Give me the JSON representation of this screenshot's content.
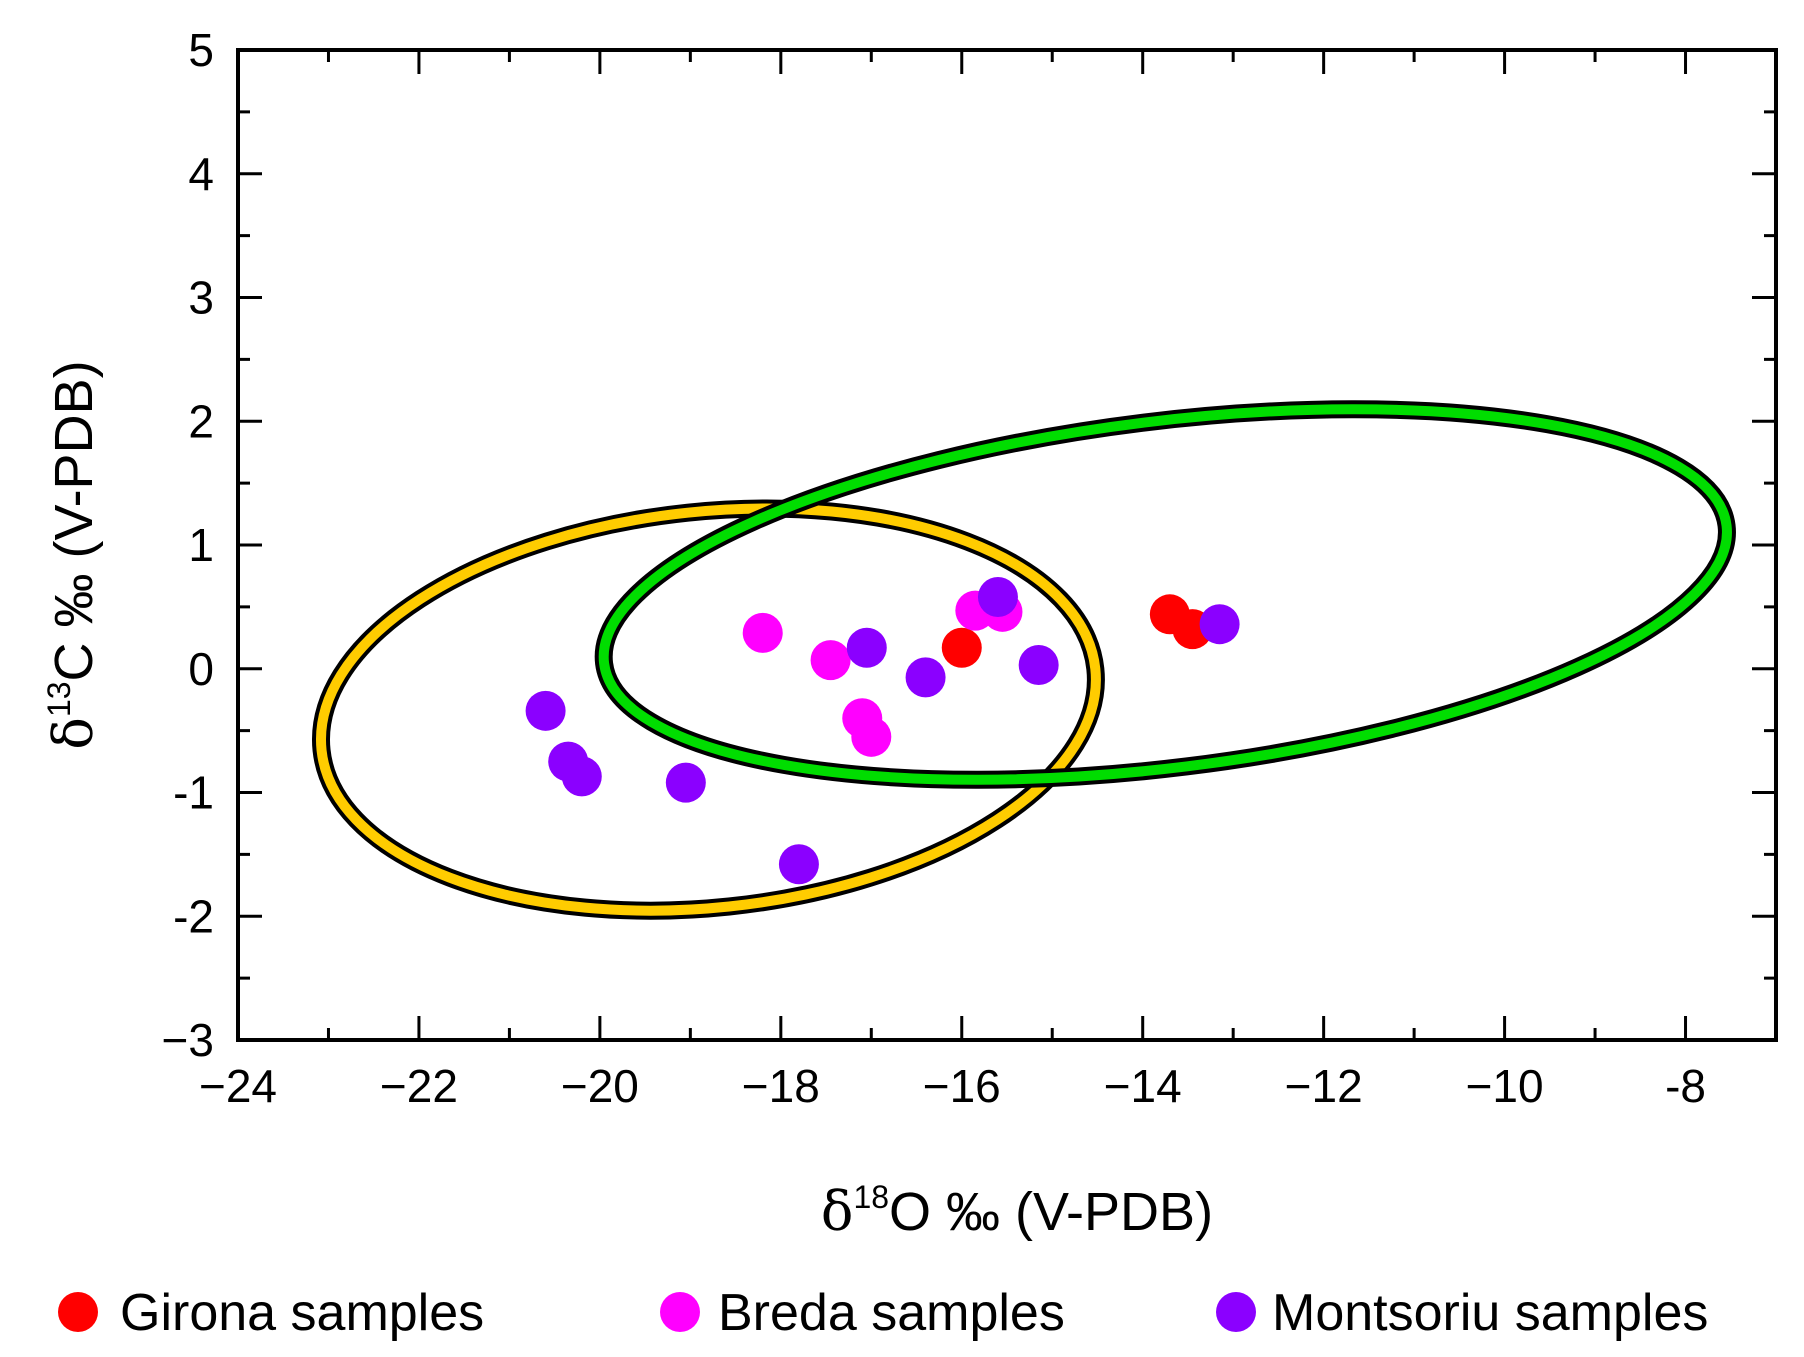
{
  "chart_data": {
    "type": "scatter",
    "title": "",
    "xlabel": {
      "prefix": "δ",
      "sup": "18",
      "suffix": "O ‰ (V-PDB)"
    },
    "ylabel": {
      "prefix": "δ",
      "sup": "13",
      "suffix": "C ‰ (V-PDB)"
    },
    "xlim": [
      -24,
      -7
    ],
    "ylim": [
      -3,
      5
    ],
    "grid": false,
    "xticks": [
      -24,
      -22,
      -20,
      -18,
      -16,
      -14,
      -12,
      -10,
      -8
    ],
    "xtick_labels": [
      "−24",
      "−22",
      "−20",
      "−18",
      "−16",
      "−14",
      "−12",
      "−10",
      "-8"
    ],
    "yticks": [
      5,
      4,
      3,
      2,
      1,
      0,
      -1,
      -2,
      -3
    ],
    "ytick_labels": [
      "5",
      "4",
      "3",
      "2",
      "1",
      "0",
      "-1",
      "-2",
      "−3"
    ],
    "legend_position": "bottom",
    "series": [
      {
        "name": "Girona samples",
        "color": "#ff0000",
        "points": [
          {
            "x": -13.7,
            "y": 0.44
          },
          {
            "x": -13.45,
            "y": 0.32
          },
          {
            "x": -16.0,
            "y": 0.17
          }
        ]
      },
      {
        "name": "Breda samples",
        "color": "#ff00ff",
        "points": [
          {
            "x": -18.2,
            "y": 0.29
          },
          {
            "x": -17.45,
            "y": 0.07
          },
          {
            "x": -17.1,
            "y": -0.4
          },
          {
            "x": -17.0,
            "y": -0.55
          },
          {
            "x": -15.85,
            "y": 0.47
          },
          {
            "x": -15.55,
            "y": 0.46
          }
        ]
      },
      {
        "name": "Montsoriu samples",
        "color": "#8b00ff",
        "points": [
          {
            "x": -20.6,
            "y": -0.34
          },
          {
            "x": -20.35,
            "y": -0.75
          },
          {
            "x": -20.2,
            "y": -0.87
          },
          {
            "x": -19.05,
            "y": -0.92
          },
          {
            "x": -17.8,
            "y": -1.58
          },
          {
            "x": -17.05,
            "y": 0.17
          },
          {
            "x": -16.4,
            "y": -0.07
          },
          {
            "x": -15.6,
            "y": 0.58
          },
          {
            "x": -15.15,
            "y": 0.03
          },
          {
            "x": -13.15,
            "y": 0.36
          }
        ]
      }
    ],
    "ellipses": [
      {
        "name": "yellow-field",
        "color": "#ffcc00",
        "outline": "#000000",
        "center_x": -18.8,
        "center_y": -0.33,
        "rx": 4.3,
        "ry": 1.6,
        "rotation_deg": -6
      },
      {
        "name": "green-field",
        "color": "#00dd00",
        "outline": "#000000",
        "center_x": -13.75,
        "center_y": 0.6,
        "rx": 6.25,
        "ry": 1.4,
        "rotation_deg": -7
      }
    ]
  }
}
